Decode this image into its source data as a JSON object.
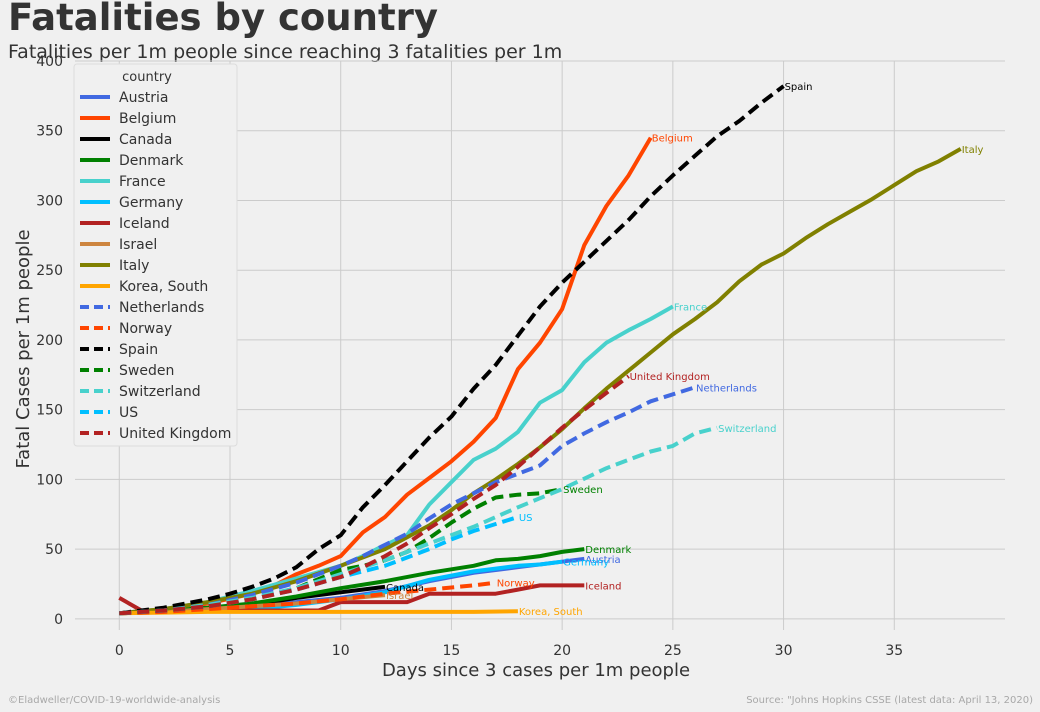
{
  "header": {
    "title": "Fatalities by country",
    "subtitle": "Fatalities per 1m people since reaching 3 fatalities per 1m"
  },
  "footer": {
    "credit": "©Eladweller/COVID-19-worldwide-analysis",
    "source": "Source: \"Johns Hopkins CSSE (latest data: April 13, 2020)"
  },
  "chart_data": {
    "type": "line",
    "title": "",
    "xlabel": "Days since 3 cases per 1m people",
    "ylabel": "Fatal Cases per 1m people",
    "xlim": [
      -2,
      40
    ],
    "ylim": [
      -8,
      400
    ],
    "xticks": [
      0,
      5,
      10,
      15,
      20,
      25,
      30,
      35
    ],
    "yticks": [
      0,
      50,
      100,
      150,
      200,
      250,
      300,
      350,
      400
    ],
    "grid": true,
    "legend": {
      "title": "country",
      "placement": "upper left"
    },
    "series": [
      {
        "name": "Austria",
        "color": "#4169e1",
        "dash": false,
        "label": "Austria",
        "x": [
          0,
          2,
          4,
          6,
          8,
          10,
          12,
          14,
          16,
          18,
          20,
          21
        ],
        "y": [
          4,
          5,
          7,
          9,
          12,
          15,
          20,
          27,
          33,
          37,
          41,
          43
        ]
      },
      {
        "name": "Belgium",
        "color": "#ff4500",
        "dash": false,
        "label": "Belgium",
        "x": [
          0,
          2,
          4,
          6,
          7,
          8,
          9,
          10,
          11,
          12,
          13,
          14,
          15,
          16,
          17,
          18,
          19,
          20,
          21,
          22,
          23,
          24
        ],
        "y": [
          4,
          7,
          11,
          18,
          24,
          32,
          38,
          45,
          62,
          73,
          89,
          101,
          113,
          127,
          144,
          179,
          198,
          222,
          268,
          296,
          318,
          345
        ]
      },
      {
        "name": "Canada",
        "color": "#000000",
        "dash": false,
        "label": "Canada",
        "x": [
          0,
          2,
          4,
          6,
          8,
          10,
          12
        ],
        "y": [
          4,
          5,
          7,
          10,
          15,
          19,
          23
        ]
      },
      {
        "name": "Denmark",
        "color": "#008000",
        "dash": false,
        "label": "Denmark",
        "x": [
          0,
          2,
          4,
          6,
          8,
          10,
          12,
          14,
          16,
          17,
          18,
          19,
          20,
          21
        ],
        "y": [
          4,
          6,
          8,
          11,
          16,
          22,
          27,
          33,
          38,
          42,
          43,
          45,
          48,
          50
        ]
      },
      {
        "name": "France",
        "color": "#48d1cc",
        "dash": false,
        "label": "France",
        "x": [
          0,
          2,
          4,
          6,
          8,
          10,
          11,
          12,
          13,
          14,
          15,
          16,
          17,
          18,
          19,
          20,
          21,
          22,
          23,
          24,
          25
        ],
        "y": [
          4,
          7,
          12,
          20,
          29,
          38,
          45,
          53,
          60,
          82,
          98,
          114,
          122,
          134,
          155,
          164,
          184,
          198,
          207,
          215,
          224
        ]
      },
      {
        "name": "Germany",
        "color": "#00bfff",
        "dash": false,
        "label": "Germany",
        "x": [
          0,
          2,
          4,
          6,
          8,
          10,
          12,
          14,
          16,
          17,
          18,
          19,
          20
        ],
        "y": [
          4,
          5,
          6,
          7,
          10,
          14,
          19,
          28,
          34,
          36,
          38,
          39,
          41
        ]
      },
      {
        "name": "Iceland",
        "color": "#b22222",
        "dash": false,
        "label": "Iceland",
        "x": [
          0,
          1,
          2,
          4,
          6,
          8,
          9,
          10,
          11,
          12,
          13,
          14,
          16,
          17,
          18,
          19,
          20,
          21
        ],
        "y": [
          15,
          6,
          6,
          6,
          6,
          6,
          6,
          12,
          12,
          12,
          12,
          18,
          18,
          18,
          21,
          24,
          24,
          24
        ]
      },
      {
        "name": "Israel",
        "color": "#cd853f",
        "dash": false,
        "label": "Israel",
        "x": [
          0,
          2,
          4,
          6,
          8,
          10,
          12
        ],
        "y": [
          4,
          5,
          7,
          9,
          11,
          14,
          17
        ]
      },
      {
        "name": "Italy",
        "color": "#808000",
        "dash": false,
        "label": "Italy",
        "x": [
          0,
          2,
          4,
          6,
          8,
          10,
          12,
          14,
          15,
          16,
          17,
          18,
          19,
          20,
          21,
          22,
          23,
          24,
          25,
          26,
          27,
          28,
          29,
          30,
          31,
          32,
          33,
          34,
          35,
          36,
          37,
          38
        ],
        "y": [
          4,
          7,
          12,
          18,
          27,
          38,
          50,
          67,
          78,
          90,
          100,
          111,
          123,
          136,
          151,
          165,
          178,
          191,
          204,
          215,
          227,
          242,
          254,
          262,
          273,
          283,
          292,
          301,
          311,
          321,
          328,
          337
        ]
      },
      {
        "name": "Korea, South",
        "color": "#ffa500",
        "dash": false,
        "label": "Korea, South",
        "x": [
          0,
          2,
          4,
          6,
          8,
          10,
          12,
          14,
          16,
          18
        ],
        "y": [
          4,
          4.5,
          5,
          5,
          5,
          5,
          5,
          5,
          5,
          5.5
        ]
      },
      {
        "name": "Netherlands",
        "color": "#4169e1",
        "dash": true,
        "label": "Netherlands",
        "x": [
          0,
          2,
          4,
          6,
          8,
          10,
          11,
          12,
          13,
          14,
          15,
          16,
          17,
          18,
          19,
          20,
          21,
          22,
          23,
          24,
          25,
          26
        ],
        "y": [
          4,
          6,
          10,
          17,
          26,
          38,
          45,
          53,
          61,
          72,
          82,
          90,
          98,
          104,
          110,
          124,
          133,
          141,
          148,
          156,
          161,
          166
        ]
      },
      {
        "name": "Norway",
        "color": "#ff4500",
        "dash": true,
        "label": "Norway",
        "x": [
          0,
          2,
          4,
          6,
          8,
          10,
          12,
          14,
          16,
          17
        ],
        "y": [
          4,
          5,
          7,
          9,
          11,
          14,
          18,
          21,
          24,
          26
        ]
      },
      {
        "name": "Spain",
        "color": "#000000",
        "dash": true,
        "label": "Spain",
        "x": [
          0,
          1,
          2,
          3,
          4,
          5,
          6,
          7,
          8,
          9,
          10,
          11,
          12,
          13,
          14,
          15,
          16,
          17,
          18,
          19,
          20,
          21,
          22,
          23,
          24,
          25,
          26,
          27,
          28,
          29,
          30
        ],
        "y": [
          4,
          6,
          8,
          11,
          14,
          18,
          23,
          29,
          37,
          50,
          60,
          80,
          96,
          113,
          130,
          145,
          165,
          182,
          203,
          224,
          241,
          256,
          271,
          286,
          303,
          318,
          332,
          346,
          357,
          370,
          382
        ]
      },
      {
        "name": "Sweden",
        "color": "#008000",
        "dash": true,
        "label": "Sweden",
        "x": [
          0,
          2,
          4,
          6,
          8,
          10,
          11,
          12,
          13,
          14,
          15,
          16,
          17,
          18,
          19,
          20
        ],
        "y": [
          4,
          6,
          9,
          14,
          22,
          35,
          38,
          42,
          48,
          58,
          69,
          79,
          87,
          89,
          90,
          93
        ]
      },
      {
        "name": "Switzerland",
        "color": "#48d1cc",
        "dash": true,
        "label": "Switzerland",
        "x": [
          0,
          2,
          4,
          6,
          8,
          10,
          12,
          14,
          16,
          18,
          20,
          22,
          24,
          25,
          26,
          27
        ],
        "y": [
          4,
          6,
          10,
          15,
          22,
          32,
          42,
          54,
          66,
          80,
          93,
          108,
          120,
          124,
          133,
          137
        ]
      },
      {
        "name": "US",
        "color": "#00bfff",
        "dash": true,
        "label": "US",
        "x": [
          0,
          2,
          4,
          6,
          8,
          10,
          12,
          13,
          14,
          15,
          16,
          17,
          18
        ],
        "y": [
          4,
          6,
          9,
          14,
          21,
          30,
          38,
          44,
          50,
          57,
          63,
          68,
          73
        ]
      },
      {
        "name": "United Kingdom",
        "color": "#b22222",
        "dash": true,
        "label": "United Kingdom",
        "x": [
          0,
          2,
          4,
          6,
          8,
          10,
          11,
          12,
          13,
          14,
          15,
          16,
          17,
          18,
          19,
          20,
          21,
          22,
          23
        ],
        "y": [
          4,
          6,
          9,
          14,
          21,
          30,
          37,
          45,
          54,
          65,
          75,
          86,
          96,
          109,
          123,
          137,
          150,
          162,
          174
        ]
      }
    ]
  }
}
